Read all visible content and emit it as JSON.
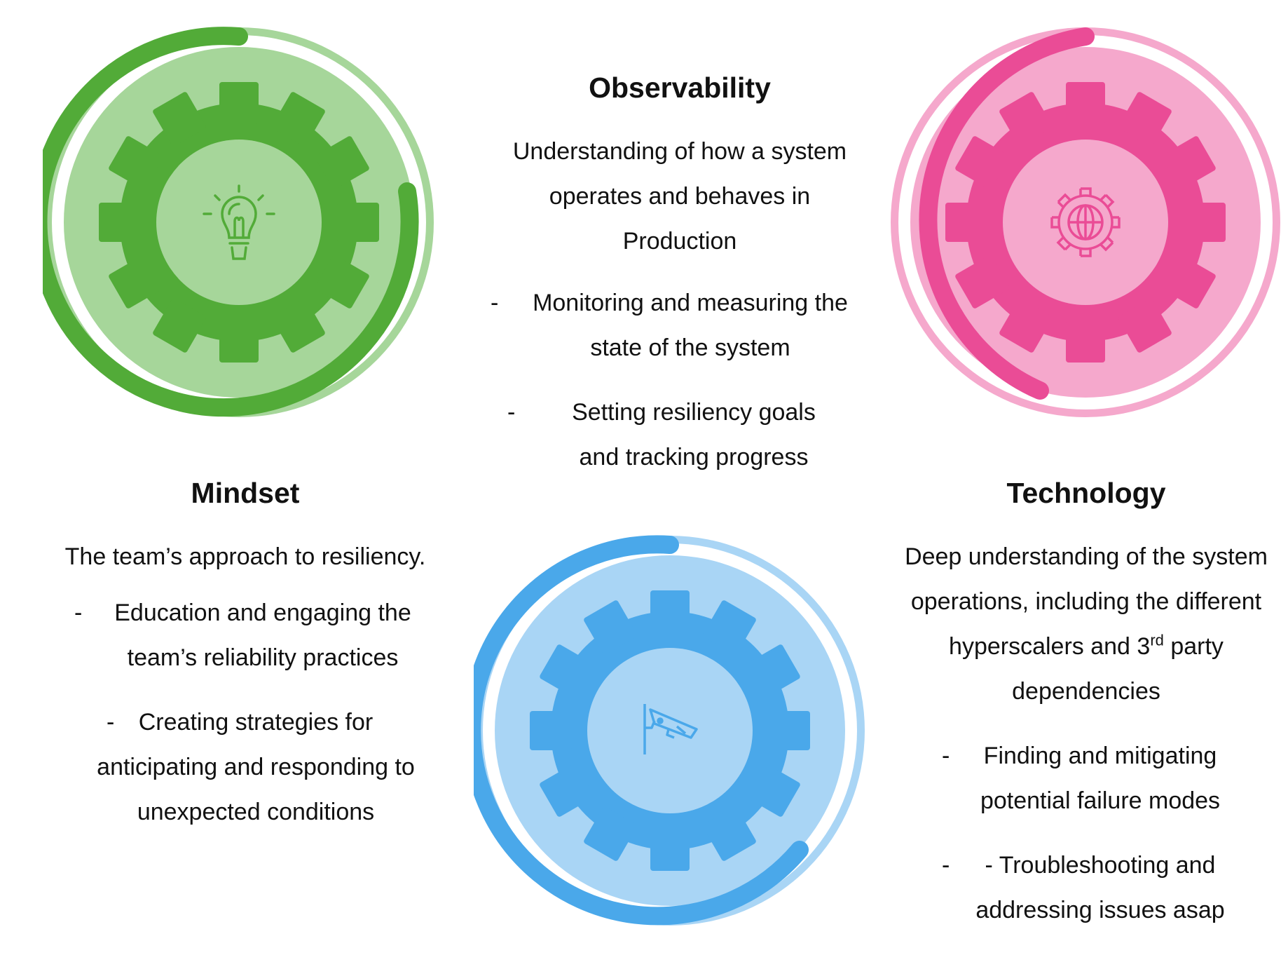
{
  "pillars": {
    "mindset": {
      "title": "Mindset",
      "description": "The team’s approach to resiliency.",
      "bullets": [
        "Education and engaging the team’s reliability practices",
        "Creating strategies for anticipating and responding to unexpected conditions"
      ],
      "color": "#52ab38",
      "light_color": "#a6d69a",
      "icon": "lightbulb-icon"
    },
    "observability": {
      "title": "Observability",
      "description": "Understanding of how a system operates and behaves in Production",
      "bullets": [
        "Monitoring and measuring the state of the system",
        "Setting resiliency goals and tracking progress"
      ],
      "color": "#4aa8ea",
      "light_color": "#a9d5f5",
      "icon": "security-camera-icon"
    },
    "technology": {
      "title": "Technology",
      "description_parts": [
        "Deep understanding of the system operations, including the different hyperscalers and 3",
        "rd",
        " party dependencies"
      ],
      "bullets": [
        "Finding and mitigating potential failure modes",
        "- Troubleshooting and addressing issues asap"
      ],
      "color": "#ea4c96",
      "light_color": "#f5a8cc",
      "icon": "globe-gear-icon"
    }
  },
  "bullet_marker": "-"
}
